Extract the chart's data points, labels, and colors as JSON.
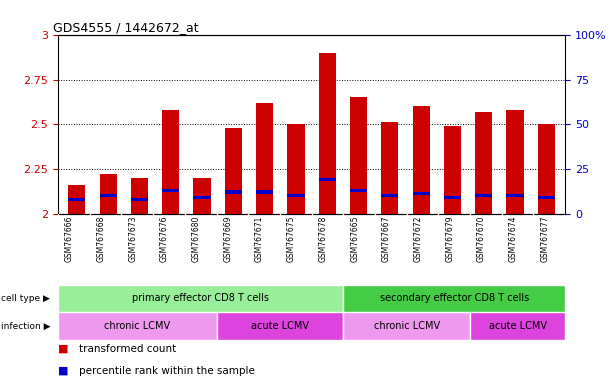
{
  "title": "GDS4555 / 1442672_at",
  "samples": [
    "GSM767666",
    "GSM767668",
    "GSM767673",
    "GSM767676",
    "GSM767680",
    "GSM767669",
    "GSM767671",
    "GSM767675",
    "GSM767678",
    "GSM767665",
    "GSM767667",
    "GSM767672",
    "GSM767679",
    "GSM767670",
    "GSM767674",
    "GSM767677"
  ],
  "transformed_count": [
    2.16,
    2.22,
    2.2,
    2.58,
    2.2,
    2.48,
    2.62,
    2.5,
    2.9,
    2.65,
    2.51,
    2.6,
    2.49,
    2.57,
    2.58,
    2.5
  ],
  "percentile_rank": [
    2.08,
    2.1,
    2.08,
    2.13,
    2.09,
    2.12,
    2.12,
    2.1,
    2.19,
    2.13,
    2.1,
    2.11,
    2.09,
    2.1,
    2.1,
    2.09
  ],
  "ymin": 2.0,
  "ymax": 3.0,
  "yticks": [
    2.0,
    2.25,
    2.5,
    2.75,
    3.0
  ],
  "ytick_labels_left": [
    "2",
    "2.25",
    "2.5",
    "2.75",
    "3"
  ],
  "ytick_labels_right": [
    "0",
    "25",
    "50",
    "75",
    "100%"
  ],
  "bar_color": "#cc0000",
  "blue_color": "#0000cc",
  "cell_type_groups": [
    {
      "label": "primary effector CD8 T cells",
      "start": 0,
      "end": 8,
      "color": "#99ee99"
    },
    {
      "label": "secondary effector CD8 T cells",
      "start": 9,
      "end": 15,
      "color": "#44cc44"
    }
  ],
  "infection_groups": [
    {
      "label": "chronic LCMV",
      "start": 0,
      "end": 4,
      "color": "#ee99ee"
    },
    {
      "label": "acute LCMV",
      "start": 5,
      "end": 8,
      "color": "#dd44dd"
    },
    {
      "label": "chronic LCMV",
      "start": 9,
      "end": 12,
      "color": "#ee99ee"
    },
    {
      "label": "acute LCMV",
      "start": 13,
      "end": 15,
      "color": "#dd44dd"
    }
  ],
  "grid_color": "#000000",
  "left_tick_color": "#cc0000",
  "right_tick_color": "#0000cc",
  "sample_box_color": "#cccccc",
  "sample_box_line_color": "#ffffff"
}
